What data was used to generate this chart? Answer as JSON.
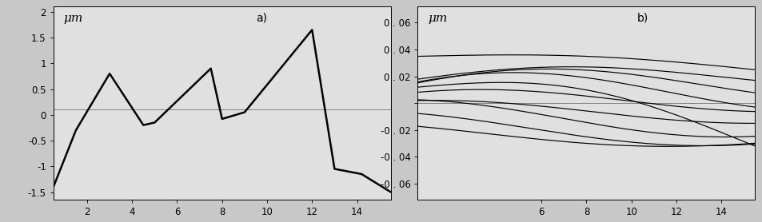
{
  "chart_a": {
    "title": "a)",
    "ylabel": "μm",
    "xlim": [
      0.5,
      15.5
    ],
    "ylim": [
      -1.65,
      2.1
    ],
    "yticks": [
      -1.5,
      -1.0,
      -0.5,
      0.0,
      0.5,
      1.0,
      1.5,
      2.0
    ],
    "ytick_labels": [
      "-1.5",
      "-1",
      "-0.5",
      "0",
      "0.5",
      "1",
      "1.5",
      "2"
    ],
    "xticks": [
      2,
      4,
      6,
      8,
      10,
      12,
      14
    ],
    "hline_y": 0.1,
    "profile_x": [
      0.5,
      1.5,
      3.0,
      4.5,
      5.0,
      7.5,
      8.0,
      9.0,
      12.0,
      13.0,
      14.2,
      15.5
    ],
    "profile_y": [
      -1.4,
      -0.3,
      0.8,
      -0.2,
      -0.15,
      0.9,
      -0.08,
      0.05,
      1.65,
      -1.05,
      -1.15,
      -1.5
    ]
  },
  "chart_b": {
    "title": "b)",
    "ylabel": "μm",
    "xlim": [
      0.5,
      15.5
    ],
    "ylim": [
      -0.072,
      0.072
    ],
    "yticks": [
      -0.06,
      -0.04,
      -0.02,
      0.0,
      0.02,
      0.04,
      0.06
    ],
    "ytick_labels": [
      "-0 . 06",
      "-0 . 04",
      "-0 . 02",
      "",
      "0 . 02",
      "0 . 04",
      "0 . 06"
    ],
    "xticks": [
      6,
      8,
      10,
      12,
      14
    ],
    "hline_y": 0.0
  },
  "line_color": "#000000",
  "bg_color": "#c8c8c8",
  "plot_bg": "#e0e0e0",
  "font_size": 8.5,
  "fig_width": 9.54,
  "fig_height": 2.78
}
